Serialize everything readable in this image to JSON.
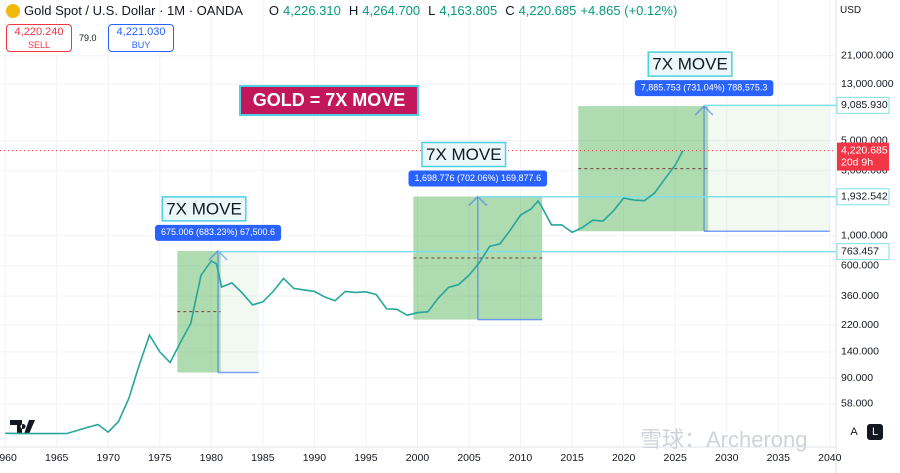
{
  "chart_data": {
    "type": "line",
    "title": "Gold Spot / U.S. Dollar · 1M · OANDA",
    "ohlc": [
      {
        "label": "O",
        "value": "4,226.310"
      },
      {
        "label": "H",
        "value": "4,264.700"
      },
      {
        "label": "L",
        "value": "4,163.805"
      },
      {
        "label": "C",
        "value": "4,220.685"
      }
    ],
    "change": "+4.865 (+0.12%)",
    "sell": {
      "price": "4,220.240",
      "label": "SELL"
    },
    "buy": {
      "price": "4,221.030",
      "label": "BUY"
    },
    "spread": "79.0",
    "currency": "USD",
    "x": [
      1960,
      1962,
      1964,
      1966,
      1968,
      1969,
      1970,
      1971,
      1972,
      1973,
      1974,
      1975,
      1976,
      1977,
      1978,
      1979,
      1980,
      1980.5,
      1981,
      1982,
      1983,
      1984,
      1985,
      1986,
      1987,
      1988,
      1989,
      1990,
      1991,
      1992,
      1993,
      1994,
      1995,
      1996,
      1997,
      1998,
      1999,
      2000,
      2001,
      2002,
      2003,
      2004,
      2005,
      2006,
      2007,
      2008,
      2009,
      2010,
      2011,
      2011.7,
      2012,
      2013,
      2014,
      2015,
      2016,
      2017,
      2018,
      2019,
      2020,
      2021,
      2022,
      2023,
      2024,
      2025,
      2025.75
    ],
    "values": [
      35.3,
      35.1,
      35.1,
      35.2,
      39,
      41,
      36,
      43,
      64,
      112,
      186,
      140,
      117,
      164,
      226,
      512,
      653,
      620,
      420,
      450,
      380,
      310,
      327,
      390,
      486,
      410,
      400,
      390,
      355,
      333,
      390,
      383,
      387,
      369,
      290,
      288,
      260,
      272,
      276,
      347,
      416,
      438,
      513,
      632,
      834,
      870,
      1100,
      1420,
      1570,
      1800,
      1660,
      1200,
      1200,
      1060,
      1150,
      1300,
      1280,
      1520,
      1890,
      1830,
      1810,
      2060,
      2620,
      3300,
      4220.685
    ],
    "color": "#26a69a",
    "log_scale": true,
    "grid": true,
    "xlim": [
      1959.5,
      2040.6
    ],
    "xticks": [
      1960,
      1965,
      1970,
      1975,
      1980,
      1985,
      1990,
      1995,
      2000,
      2005,
      2010,
      2015,
      2020,
      2025,
      2030,
      2035,
      2040
    ],
    "ylim": [
      28,
      54000
    ],
    "yticks": [
      {
        "value": 58,
        "label": "58.000"
      },
      {
        "value": 90,
        "label": "90.000"
      },
      {
        "value": 140,
        "label": "140.000"
      },
      {
        "value": 220,
        "label": "220.000"
      },
      {
        "value": 360,
        "label": "360.000"
      },
      {
        "value": 600,
        "label": "600.000"
      },
      {
        "value": 1000,
        "label": "1,000.000"
      },
      {
        "value": 3000,
        "label": "3,000.000"
      },
      {
        "value": 5000,
        "label": "5,000.000"
      },
      {
        "value": 13000,
        "label": "13,000.000"
      },
      {
        "value": 21000,
        "label": "21,000.000"
      }
    ],
    "last_price": {
      "value": 4220.685,
      "label": "4,220.685",
      "countdown": "20d 9h"
    },
    "levels": [
      {
        "value": 763.457,
        "label": "763.457"
      },
      {
        "value": 1932.542,
        "label": "1,932.542"
      },
      {
        "value": 9085.93,
        "label": "9,085.930"
      }
    ],
    "measures": [
      {
        "title": "7X MOVE",
        "label": "675.006 (683.23%) 67,500.6",
        "x": [
          1976.7,
          1980.9
        ],
        "x_end": 1984.6,
        "y": [
          98.8,
          773.8
        ]
      },
      {
        "title": "7X MOVE",
        "label": "1,698.776 (702.06%) 169,877.6",
        "x": [
          1999.6,
          2012.1
        ],
        "x_end": 2012.1,
        "y": [
          241.9,
          1940.7
        ]
      },
      {
        "title": "7X MOVE",
        "label": "7,885.753 (731.04%) 788,575.3",
        "x": [
          2015.6,
          2028.2
        ],
        "x_end": 2040,
        "y": [
          1078.6,
          8964.4
        ]
      }
    ],
    "headline": "GOLD = 7X MOVE",
    "watermark": "雪球：Archerong",
    "buttons": [
      "A",
      "L"
    ]
  }
}
